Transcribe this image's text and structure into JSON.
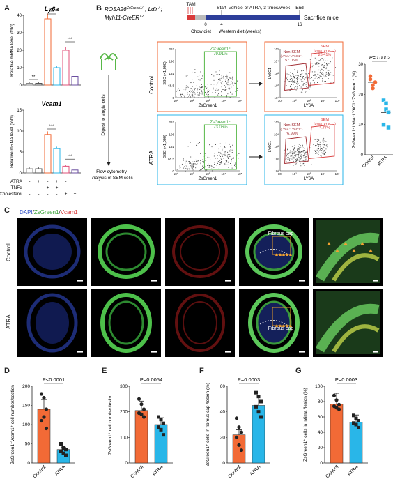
{
  "colors": {
    "orange": "#F26A36",
    "cyan": "#29B6E8",
    "red": "#D93A3A",
    "green": "#58B848",
    "blue": "#3050C8",
    "black": "#222222"
  },
  "panelA": {
    "letter": "A",
    "ylabel": "Relative mRNA level (fold)",
    "row_labels": [
      "ATRA",
      "TNFα",
      "Cholesterol"
    ],
    "row_signs": [
      [
        "-",
        "+",
        "-",
        "+",
        "-",
        "+"
      ],
      [
        "-",
        "-",
        "+",
        "+",
        "-",
        "-"
      ],
      [
        "-",
        "-",
        "-",
        "-",
        "+",
        "+"
      ]
    ],
    "colors": [
      "#888888",
      "#555555",
      "#F26A36",
      "#29B6E8",
      "#E0507A",
      "#6B4FA0"
    ],
    "charts": [
      {
        "gene": "Ly6a",
        "ymax": 40,
        "ticks": [
          0,
          10,
          20,
          30,
          40
        ],
        "values": [
          1,
          1,
          38,
          10,
          20,
          5
        ],
        "sig": [
          "**",
          "***",
          "***"
        ]
      },
      {
        "gene": "Vcam1",
        "ymax": 15,
        "ticks": [
          0,
          5,
          10,
          15
        ],
        "values": [
          1,
          1,
          9.2,
          5.8,
          1.6,
          0.7
        ],
        "sig": [
          "***",
          "***"
        ]
      }
    ]
  },
  "panelB": {
    "letter": "B",
    "mouse_line1": "ROSA26",
    "mouse_line1_sup": "ZsGreen1/+",
    "mouse_line1_tail": "; Ldlr",
    "mouse_line1_tail_sup": "-/-",
    "mouse_line1_end": ";",
    "mouse_line2": "Myh11-CreER",
    "mouse_line2_sup": "T2",
    "tam": "TAM",
    "start": "Start",
    "end": "End",
    "treatment": "Vehicle or ATRA, 3 times/week",
    "sacrifice": "Sacrifice mice",
    "chow": "Chow diet",
    "western": "Western diet (weeks)",
    "tick_0": "0",
    "tick_4": "4",
    "tick_16": "16",
    "digest": "Digest to single cells",
    "flow": "Flow cytometry analysis of SEM cells",
    "control": "Control",
    "atra": "ATRA",
    "gate_green": "ZsGreen1⁺",
    "pct_green_control": "79.91%",
    "pct_green_atra": "73.06%",
    "ssc": "SSC (×1,000)",
    "zsgreen_axis": "ZsGreen1",
    "ly6c1_axis": "LY6C1",
    "ly6a_axis": "LY6A",
    "ssc_ticks": [
      "0",
      "65.5",
      "131",
      "196",
      "262"
    ],
    "log_ticks": [
      "10¹",
      "10²",
      "10³",
      "10⁴",
      "10⁵"
    ],
    "nonsem": "Non-SEM",
    "nonsem_sub": "(LY6A⁻LY6C1⁻)",
    "sem": "SEM",
    "sem_sub": "(LY6A⁺LY6C1⁺)",
    "pct_nonsem_control": "57.05%",
    "pct_sem_control": "26.41%",
    "pct_nonsem_atra": "76.99%",
    "pct_sem_atra": "4.77%",
    "scatter_p": "P=0.0002",
    "scatter_ylabel": "ZsGreen1⁺LY6A⁺LY6C1⁺/ZsGreen1⁺ (%)",
    "scatter_ticks": [
      0,
      10,
      20,
      30
    ],
    "scatter_xcats": [
      "Control",
      "ATRA"
    ],
    "scatter_control": [
      26,
      23,
      24,
      25,
      22,
      24
    ],
    "scatter_atra": [
      18,
      15,
      14,
      10,
      17,
      9
    ],
    "scatter_mean_control": 24,
    "scatter_mean_atra": 14
  },
  "panelC": {
    "letter": "C",
    "legend_dapi": "DAPI",
    "legend_zs": "ZsGreen1",
    "legend_vcam": "Vcam1",
    "slash": "/",
    "row1": "Control",
    "row2": "ATRA",
    "fibrous_cap": "Fibrous cap"
  },
  "chart_data": [
    {
      "type": "bar",
      "title": "D",
      "ylabel": "ZsGreen1⁺Vcam1⁺ cell number/section",
      "categories": [
        "Control",
        "ATRA"
      ],
      "values": [
        140,
        35
      ],
      "ylim": [
        0,
        200
      ],
      "ticks": [
        0,
        50,
        100,
        150,
        200
      ],
      "p": "P<0.0001",
      "points": [
        [
          180,
          170,
          140,
          110,
          120,
          90
        ],
        [
          50,
          40,
          35,
          30,
          25,
          20
        ]
      ]
    },
    {
      "type": "bar",
      "title": "E",
      "ylabel": "ZsGreen1⁺ cell number/lesion",
      "categories": [
        "Control",
        "ATRA"
      ],
      "values": [
        205,
        150
      ],
      "ylim": [
        0,
        300
      ],
      "ticks": [
        0,
        100,
        200,
        300
      ],
      "p": "P=0.0054",
      "points": [
        [
          250,
          230,
          210,
          195,
          190,
          180
        ],
        [
          180,
          170,
          155,
          140,
          130,
          110
        ]
      ]
    },
    {
      "type": "bar",
      "title": "F",
      "ylabel": "ZsGreen1⁺ cells in fibrous cap /lesion (%)",
      "categories": [
        "Control",
        "ATRA"
      ],
      "values": [
        22,
        45
      ],
      "ylim": [
        0,
        60
      ],
      "ticks": [
        0,
        20,
        40,
        60
      ],
      "p": "P=0.0003",
      "points": [
        [
          35,
          28,
          24,
          20,
          14,
          10
        ],
        [
          55,
          52,
          48,
          44,
          40,
          36
        ]
      ]
    },
    {
      "type": "bar",
      "title": "G",
      "ylabel": "ZsGreen1⁺ cells in intima /lesion (%)",
      "categories": [
        "Control",
        "ATRA"
      ],
      "values": [
        77,
        53
      ],
      "ylim": [
        0,
        100
      ],
      "ticks": [
        0,
        20,
        40,
        60,
        80,
        100
      ],
      "p": "P=0.0003",
      "points": [
        [
          88,
          82,
          76,
          74,
          72,
          70
        ],
        [
          62,
          58,
          55,
          52,
          50,
          46
        ]
      ]
    }
  ]
}
